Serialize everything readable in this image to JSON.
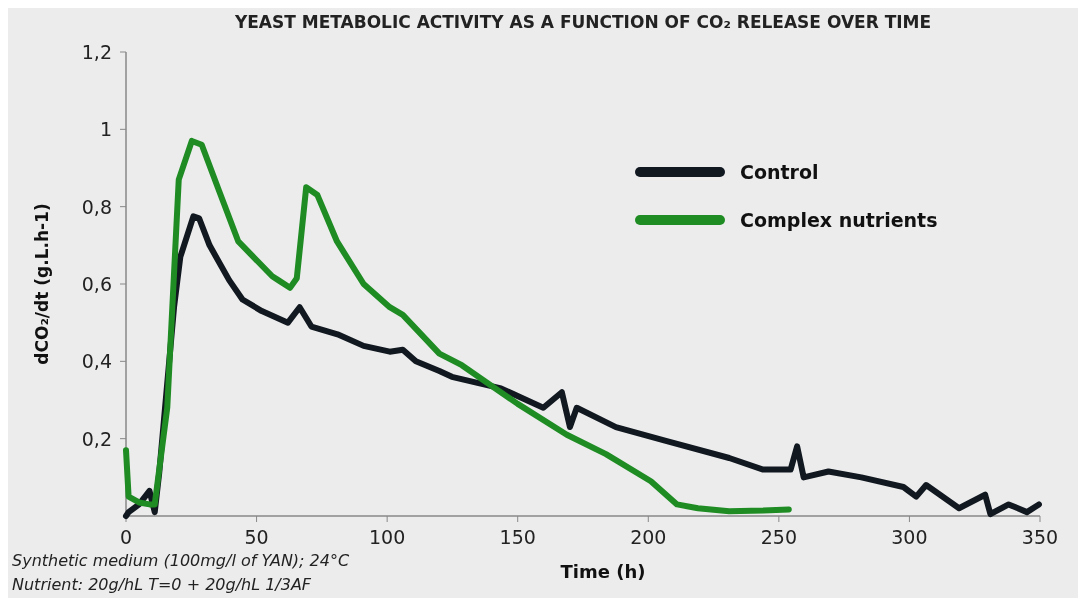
{
  "chart_data": {
    "type": "line",
    "title": "YEAST METABOLIC ACTIVITY AS A FUNCTION OF CO₂ RELEASE OVER TIME",
    "xlabel": "Time (h)",
    "ylabel": "dCO₂/dt (g.L.h-1)",
    "xlim": [
      0,
      350
    ],
    "xticks": [
      0,
      50,
      100,
      150,
      200,
      250,
      300,
      350
    ],
    "ylim": [
      0,
      1.2
    ],
    "yticks": [
      {
        "value": 0.2,
        "label": "0,2"
      },
      {
        "value": 0.4,
        "label": "0,4"
      },
      {
        "value": 0.6,
        "label": "0,6"
      },
      {
        "value": 0.8,
        "label": "0,8"
      },
      {
        "value": 1,
        "label": "1"
      },
      {
        "value": 1.2,
        "label": "1,2"
      }
    ],
    "grid": false,
    "legend": "top right",
    "line_style": "solid",
    "annotations": [
      "Synthetic medium (100mg/l of YAN); 24°C",
      "Nutrient: 20g/hL T=0 + 20g/hL 1/3AF"
    ],
    "series": [
      {
        "name": "Control",
        "color": "#111820",
        "x": [
          0,
          1,
          5,
          9,
          11,
          12.7,
          18.4,
          20.8,
          25.8,
          28,
          32,
          39.5,
          44.6,
          52,
          62,
          66.5,
          71,
          81,
          91,
          101,
          106,
          111,
          120,
          124.8,
          143.6,
          159.8,
          166.9,
          170,
          172.6,
          187.6,
          206.4,
          231,
          244,
          254.5,
          257,
          259.5,
          269,
          281.6,
          297.7,
          302.6,
          306.4,
          319,
          329,
          331,
          338,
          345,
          349.6
        ],
        "values": [
          0,
          0.01,
          0.03,
          0.065,
          0.01,
          0.11,
          0.54,
          0.67,
          0.775,
          0.77,
          0.7,
          0.61,
          0.56,
          0.53,
          0.5,
          0.54,
          0.49,
          0.47,
          0.44,
          0.425,
          0.43,
          0.4,
          0.375,
          0.36,
          0.33,
          0.28,
          0.32,
          0.23,
          0.28,
          0.23,
          0.195,
          0.15,
          0.12,
          0.12,
          0.18,
          0.1,
          0.115,
          0.1,
          0.075,
          0.05,
          0.08,
          0.02,
          0.055,
          0.005,
          0.03,
          0.01,
          0.03
        ]
      },
      {
        "name": "Complex nutrients",
        "color": "#1e8c23",
        "x": [
          0,
          1,
          5,
          9,
          11,
          15.8,
          20.2,
          25.2,
          29,
          35.7,
          43,
          56,
          58.3,
          62.8,
          65.4,
          69,
          73.3,
          80.8,
          91,
          101,
          106,
          120,
          128.6,
          150,
          168.8,
          183.8,
          201,
          211,
          219,
          231,
          244,
          253.8
        ],
        "values": [
          0.17,
          0.05,
          0.035,
          0.03,
          0.03,
          0.28,
          0.87,
          0.97,
          0.96,
          0.84,
          0.71,
          0.62,
          0.61,
          0.59,
          0.615,
          0.85,
          0.83,
          0.71,
          0.6,
          0.54,
          0.52,
          0.42,
          0.39,
          0.29,
          0.21,
          0.16,
          0.09,
          0.03,
          0.02,
          0.012,
          0.014,
          0.017
        ]
      }
    ]
  }
}
